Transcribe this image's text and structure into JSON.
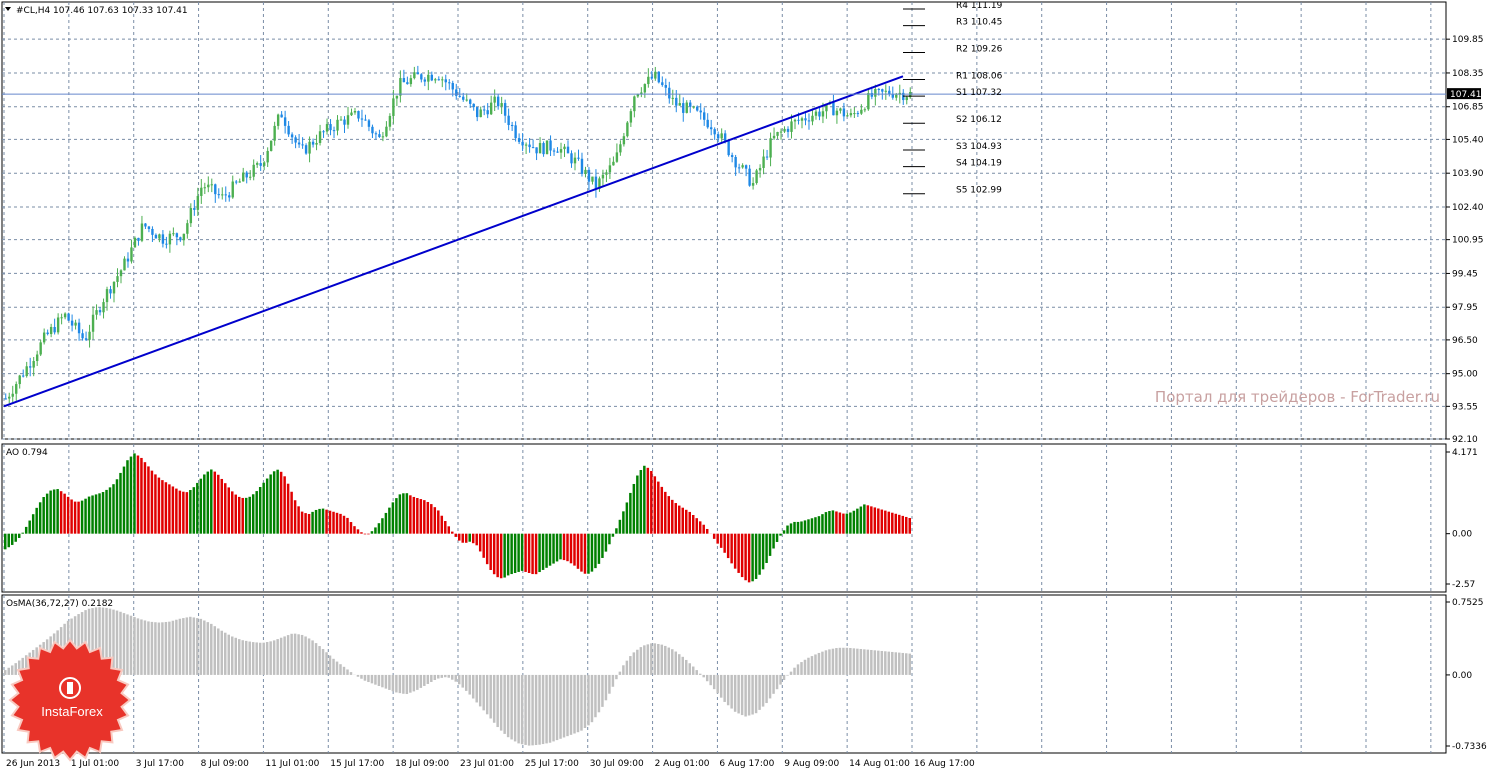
{
  "header": {
    "symbol_line": "#CL,H4  107.46 107.63 107.33 107.41",
    "current_price": "107.41"
  },
  "watermark": "Портал для трейдеров - ForTrader.ru",
  "brand": {
    "name": "InstaForex"
  },
  "colors": {
    "bull": "#4caf50",
    "bear": "#1e88e5",
    "trend": "#0000cc",
    "ao_up": "#008000",
    "ao_down": "#e00000",
    "osma": "#c0c0c0",
    "grid": "#7a8da6"
  },
  "chart_data": [
    {
      "type": "candlestick",
      "title": "#CL,H4",
      "ohlc_last": {
        "open": 107.46,
        "high": 107.63,
        "low": 107.33,
        "close": 107.41
      },
      "ylim": [
        92.1,
        111.5
      ],
      "y_ticks": [
        "109.85",
        "108.35",
        "106.85",
        "105.40",
        "103.90",
        "102.40",
        "100.95",
        "99.45",
        "97.95",
        "96.50",
        "95.00",
        "93.55",
        "92.10"
      ],
      "x_ticks": [
        "26 Jun 2013",
        "1 Jul 01:00",
        "3 Jul 17:00",
        "8 Jul 09:00",
        "11 Jul 01:00",
        "15 Jul 17:00",
        "18 Jul 09:00",
        "23 Jul 01:00",
        "25 Jul 17:00",
        "30 Jul 09:00",
        "2 Aug 01:00",
        "6 Aug 17:00",
        "9 Aug 09:00",
        "14 Aug 01:00",
        "16 Aug 17:00"
      ],
      "close_path": [
        93.9,
        95.2,
        96.6,
        97.6,
        96.5,
        98.4,
        99.8,
        101.6,
        101.0,
        101.2,
        103.4,
        102.8,
        103.6,
        104.3,
        106.6,
        104.8,
        105.6,
        106.2,
        106.5,
        105.4,
        107.8,
        108.2,
        108.3,
        107.4,
        106.5,
        107.1,
        105.6,
        105.0,
        105.1,
        104.4,
        103.3,
        104.4,
        107.5,
        108.2,
        107.0,
        106.6,
        106.0,
        104.6,
        103.4,
        105.4,
        106.1,
        106.5,
        106.8,
        106.4,
        107.3,
        107.5,
        107.41
      ],
      "pivots": [
        {
          "label": "R4 111.19",
          "value": 111.19
        },
        {
          "label": "R3 110.45",
          "value": 110.45
        },
        {
          "label": "R2 109.26",
          "value": 109.26
        },
        {
          "label": "R1 108.06",
          "value": 108.06
        },
        {
          "label": "S1 107.32",
          "value": 107.32
        },
        {
          "label": "S2 106.12",
          "value": 106.12
        },
        {
          "label": "S3 104.93",
          "value": 104.93
        },
        {
          "label": "S4 104.19",
          "value": 104.19
        },
        {
          "label": "S5 102.99",
          "value": 102.99
        }
      ],
      "trendline": {
        "from": {
          "x": "26 Jun 2013",
          "y": 93.55
        },
        "to": {
          "x": "16 Aug 17:00",
          "y": 108.2
        }
      },
      "current_price_line": 107.41
    },
    {
      "type": "bar",
      "title": "AO 0.794",
      "ylim": [
        -2.57,
        4.171
      ],
      "y_ticks": [
        "4.171",
        "0.00",
        "-2.57"
      ],
      "values": [
        -0.8,
        -0.6,
        -0.3,
        0.2,
        0.8,
        1.4,
        1.9,
        2.2,
        2.3,
        2.1,
        1.8,
        1.6,
        1.7,
        1.9,
        2.0,
        2.1,
        2.3,
        2.6,
        3.2,
        3.8,
        4.1,
        3.9,
        3.5,
        3.1,
        2.8,
        2.6,
        2.4,
        2.2,
        2.1,
        2.3,
        2.7,
        3.1,
        3.3,
        3.0,
        2.6,
        2.2,
        1.9,
        1.8,
        1.9,
        2.2,
        2.6,
        3.0,
        3.3,
        3.1,
        2.4,
        1.6,
        1.1,
        1.0,
        1.2,
        1.3,
        1.2,
        1.1,
        1.0,
        0.8,
        0.4,
        0.1,
        -0.1,
        0.2,
        0.6,
        1.1,
        1.6,
        2.0,
        2.1,
        1.9,
        1.8,
        1.7,
        1.5,
        1.2,
        0.7,
        0.2,
        -0.3,
        -0.5,
        -0.4,
        -0.6,
        -1.2,
        -1.8,
        -2.2,
        -2.3,
        -2.1,
        -2.0,
        -1.9,
        -2.0,
        -2.1,
        -1.9,
        -1.7,
        -1.5,
        -1.3,
        -1.4,
        -1.6,
        -1.9,
        -2.1,
        -1.9,
        -1.5,
        -0.9,
        -0.2,
        0.6,
        1.4,
        2.3,
        3.1,
        3.5,
        3.2,
        2.7,
        2.2,
        1.8,
        1.5,
        1.3,
        1.1,
        0.8,
        0.5,
        0.1,
        -0.4,
        -0.8,
        -1.3,
        -1.8,
        -2.2,
        -2.5,
        -2.4,
        -2.0,
        -1.4,
        -0.7,
        -0.1,
        0.4,
        0.6,
        0.6,
        0.7,
        0.8,
        0.9,
        1.1,
        1.2,
        1.1,
        1.0,
        1.1,
        1.3,
        1.5,
        1.4,
        1.3,
        1.2,
        1.1,
        1.0,
        0.9,
        0.8
      ]
    },
    {
      "type": "bar",
      "title": "OsMA(36,72,27) 0.2182",
      "ylim": [
        -0.7336,
        0.7525
      ],
      "y_ticks": [
        "0.7525",
        "0.00",
        "-0.7336"
      ],
      "values": [
        0.05,
        0.12,
        0.2,
        0.28,
        0.36,
        0.45,
        0.55,
        0.62,
        0.68,
        0.7,
        0.69,
        0.66,
        0.62,
        0.58,
        0.55,
        0.54,
        0.55,
        0.58,
        0.6,
        0.58,
        0.53,
        0.46,
        0.4,
        0.36,
        0.34,
        0.33,
        0.35,
        0.39,
        0.43,
        0.41,
        0.35,
        0.26,
        0.16,
        0.08,
        0.0,
        -0.06,
        -0.1,
        -0.14,
        -0.18,
        -0.2,
        -0.16,
        -0.1,
        -0.04,
        -0.02,
        -0.08,
        -0.18,
        -0.3,
        -0.42,
        -0.55,
        -0.65,
        -0.71,
        -0.73,
        -0.72,
        -0.7,
        -0.66,
        -0.62,
        -0.58,
        -0.5,
        -0.35,
        -0.15,
        0.08,
        0.22,
        0.3,
        0.33,
        0.31,
        0.26,
        0.18,
        0.08,
        -0.03,
        -0.15,
        -0.28,
        -0.38,
        -0.43,
        -0.4,
        -0.3,
        -0.16,
        -0.02,
        0.1,
        0.17,
        0.22,
        0.26,
        0.28,
        0.28,
        0.27,
        0.26,
        0.25,
        0.24,
        0.23,
        0.22
      ]
    }
  ]
}
